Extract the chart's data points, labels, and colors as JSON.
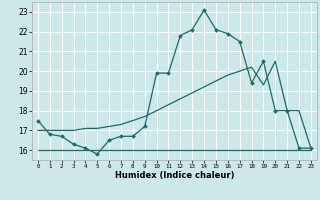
{
  "title": "",
  "xlabel": "Humidex (Indice chaleur)",
  "ylabel": "",
  "background_color": "#cce8e8",
  "grid_color": "#ffffff",
  "line_color": "#1a6b6b",
  "x_values": [
    0,
    1,
    2,
    3,
    4,
    5,
    6,
    7,
    8,
    9,
    10,
    11,
    12,
    13,
    14,
    15,
    16,
    17,
    18,
    19,
    20,
    21,
    22,
    23
  ],
  "line1_y": [
    17.5,
    16.8,
    16.7,
    16.3,
    16.1,
    15.8,
    16.5,
    16.7,
    16.7,
    17.2,
    19.9,
    19.9,
    21.8,
    22.1,
    23.1,
    22.1,
    21.9,
    21.5,
    19.4,
    20.5,
    18.0,
    18.0,
    16.1,
    16.1
  ],
  "line2_y": [
    17.0,
    17.0,
    17.0,
    17.0,
    17.1,
    17.1,
    17.2,
    17.3,
    17.5,
    17.7,
    18.0,
    18.3,
    18.6,
    18.9,
    19.2,
    19.5,
    19.8,
    20.0,
    20.2,
    19.3,
    20.5,
    18.0,
    18.0,
    16.1
  ],
  "line3_y": [
    16.0,
    16.0,
    16.0,
    16.0,
    16.0,
    16.0,
    16.0,
    16.0,
    16.0,
    16.0,
    16.0,
    16.0,
    16.0,
    16.0,
    16.0,
    16.0,
    16.0,
    16.0,
    16.0,
    16.0,
    16.0,
    16.0,
    16.0,
    16.0
  ],
  "xlim": [
    0,
    23
  ],
  "ylim": [
    15.5,
    23.5
  ],
  "yticks": [
    16,
    17,
    18,
    19,
    20,
    21,
    22,
    23
  ],
  "xticks": [
    0,
    1,
    2,
    3,
    4,
    5,
    6,
    7,
    8,
    9,
    10,
    11,
    12,
    13,
    14,
    15,
    16,
    17,
    18,
    19,
    20,
    21,
    22,
    23
  ]
}
